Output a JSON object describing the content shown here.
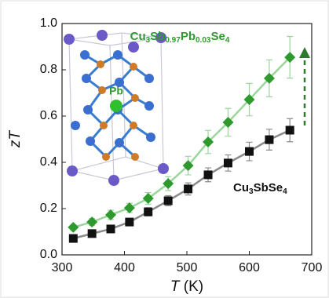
{
  "chart_data": {
    "type": "line",
    "x_label": "T (K)",
    "y_label": "zT",
    "x": [
      318,
      348,
      378,
      408,
      438,
      470,
      502,
      534,
      566,
      600,
      632,
      665
    ],
    "series": [
      {
        "name": "Cu3Sb0.97Pb0.03Se4",
        "color": "#2e9a2e",
        "line_color": "#9ad69a",
        "marker": "diamond",
        "values": [
          0.119,
          0.142,
          0.173,
          0.203,
          0.244,
          0.308,
          0.386,
          0.488,
          0.573,
          0.671,
          0.763,
          0.854
        ],
        "errors": [
          0.01,
          0.015,
          0.02,
          0.02,
          0.025,
          0.03,
          0.04,
          0.05,
          0.06,
          0.07,
          0.08,
          0.09
        ]
      },
      {
        "name": "Cu3SbSe4",
        "color": "#111111",
        "line_color": "#8a8a8a",
        "marker": "square",
        "values": [
          0.071,
          0.092,
          0.112,
          0.142,
          0.186,
          0.234,
          0.285,
          0.346,
          0.397,
          0.447,
          0.498,
          0.539
        ],
        "errors": [
          0.008,
          0.01,
          0.012,
          0.015,
          0.018,
          0.022,
          0.026,
          0.03,
          0.035,
          0.04,
          0.045,
          0.05
        ]
      }
    ],
    "annotations": [
      "Pb"
    ],
    "xlim": [
      300,
      700
    ],
    "xticks": [
      300,
      400,
      500,
      600,
      700
    ],
    "ylim": [
      0,
      1
    ],
    "yticks": [
      {
        "value": 0,
        "label": "0.0"
      },
      0.2,
      0.4,
      0.6,
      0.8,
      {
        "value": 1,
        "label": "1.0"
      }
    ]
  }
}
